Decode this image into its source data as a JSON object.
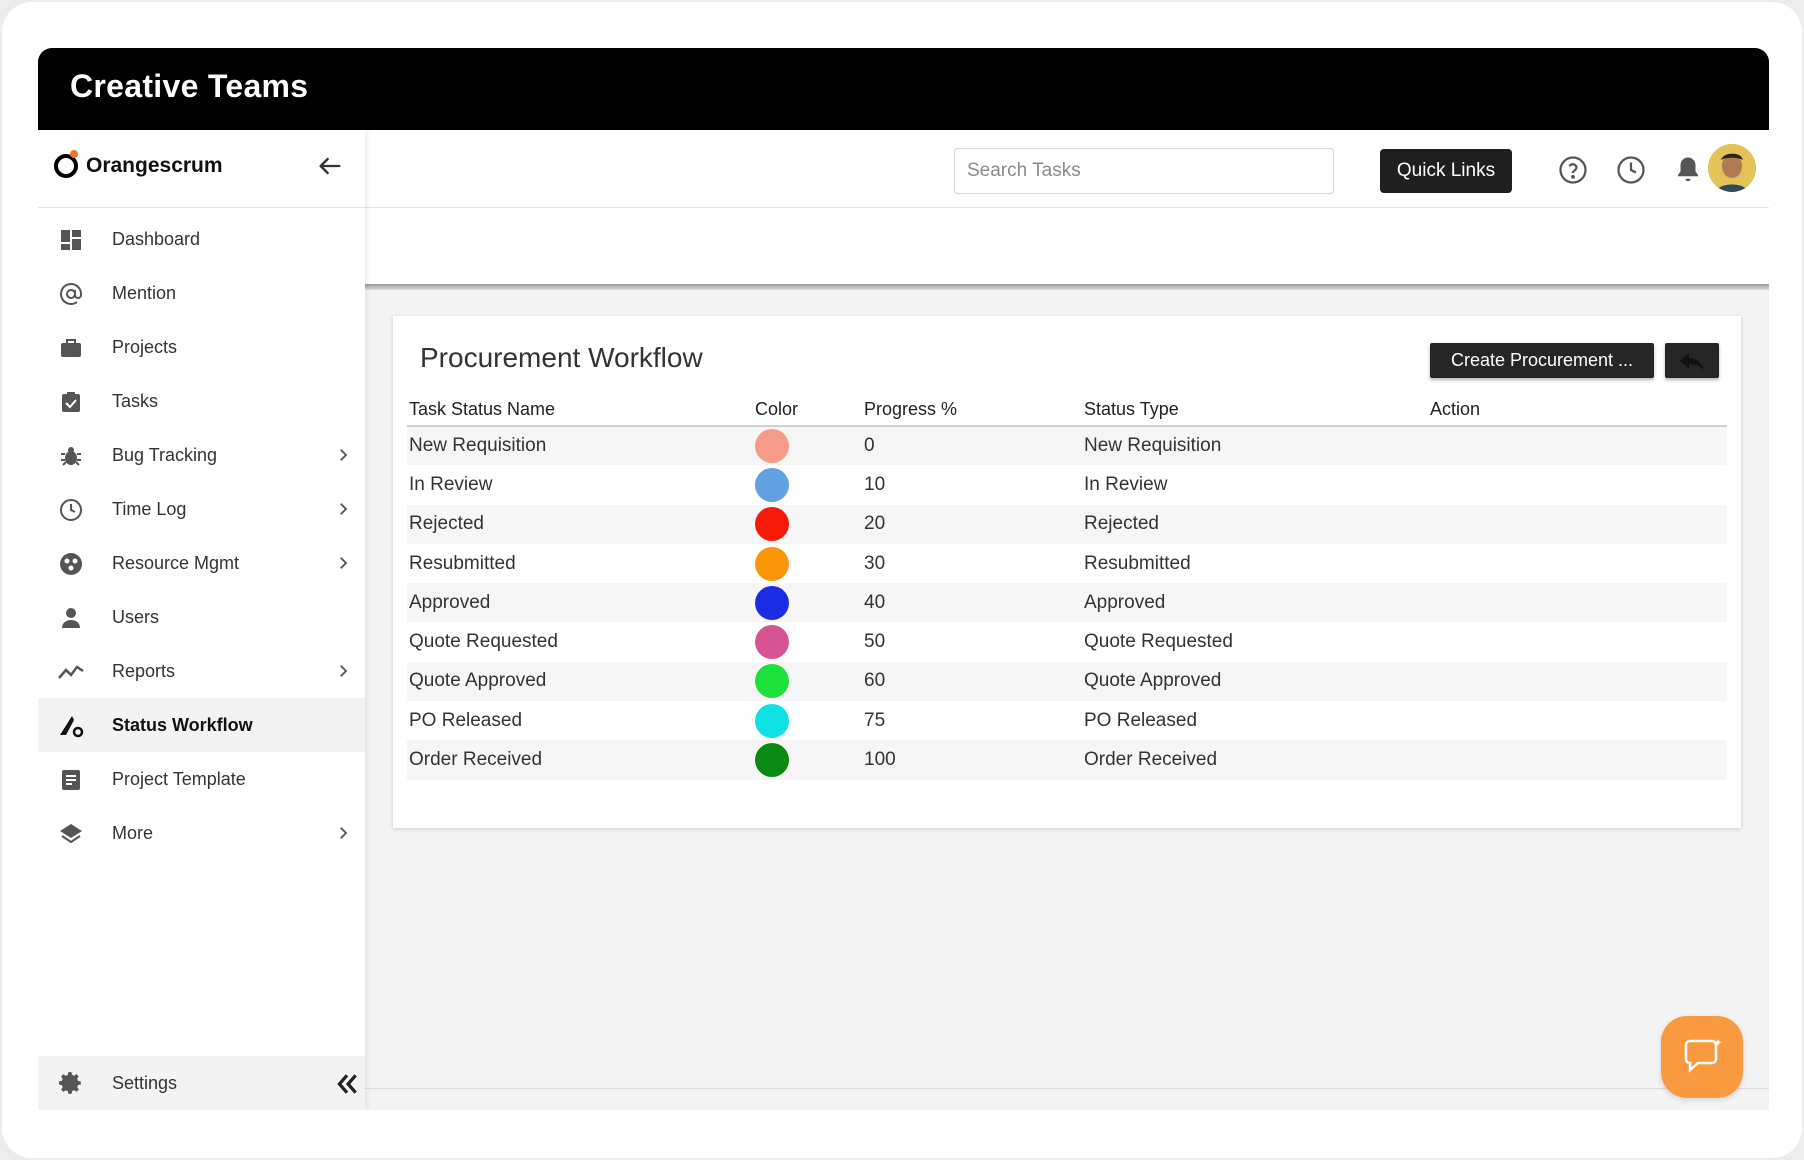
{
  "window": {
    "title": "Creative Teams"
  },
  "brand": {
    "name": "Orangescrum"
  },
  "sidebar": {
    "items": [
      {
        "label": "Dashboard",
        "icon": "dashboard-icon"
      },
      {
        "label": "Mention",
        "icon": "at-icon"
      },
      {
        "label": "Projects",
        "icon": "briefcase-icon"
      },
      {
        "label": "Tasks",
        "icon": "task-check-icon"
      },
      {
        "label": "Bug Tracking",
        "icon": "bug-icon"
      },
      {
        "label": "Time Log",
        "icon": "clock-icon"
      },
      {
        "label": "Resource Mgmt",
        "icon": "resource-icon"
      },
      {
        "label": "Users",
        "icon": "user-icon"
      },
      {
        "label": "Reports",
        "icon": "chart-line-icon"
      },
      {
        "label": "Status Workflow",
        "icon": "workflow-icon",
        "active": true
      },
      {
        "label": "Project Template",
        "icon": "template-icon"
      },
      {
        "label": "More",
        "icon": "layers-icon"
      }
    ],
    "settings_label": "Settings"
  },
  "topbar": {
    "search_placeholder": "Search Tasks",
    "quick_links_label": "Quick Links"
  },
  "page": {
    "title": "Procurement Workflow",
    "create_button_label": "Create Procurement ...",
    "columns": [
      "Task Status Name",
      "Color",
      "Progress %",
      "Status Type",
      "Action"
    ],
    "rows": [
      {
        "name": "New Requisition",
        "color": "#f59b8a",
        "progress": "0",
        "type": "New Requisition"
      },
      {
        "name": "In Review",
        "color": "#62a0e4",
        "progress": "10",
        "type": "In Review"
      },
      {
        "name": "Rejected",
        "color": "#f51a0a",
        "progress": "20",
        "type": "Rejected"
      },
      {
        "name": "Resubmitted",
        "color": "#fb9608",
        "progress": "30",
        "type": "Resubmitted"
      },
      {
        "name": "Approved",
        "color": "#1c2be4",
        "progress": "40",
        "type": "Approved"
      },
      {
        "name": "Quote Requested",
        "color": "#d85392",
        "progress": "50",
        "type": "Quote Requested"
      },
      {
        "name": "Quote Approved",
        "color": "#1ee03a",
        "progress": "60",
        "type": "Quote Approved"
      },
      {
        "name": "PO Released",
        "color": "#0ee1e4",
        "progress": "75",
        "type": "PO Released"
      },
      {
        "name": "Order Received",
        "color": "#0a8a12",
        "progress": "100",
        "type": "Order Received"
      }
    ]
  },
  "colors": {
    "accent": "#f99a40",
    "dark": "#1f1f1f"
  }
}
